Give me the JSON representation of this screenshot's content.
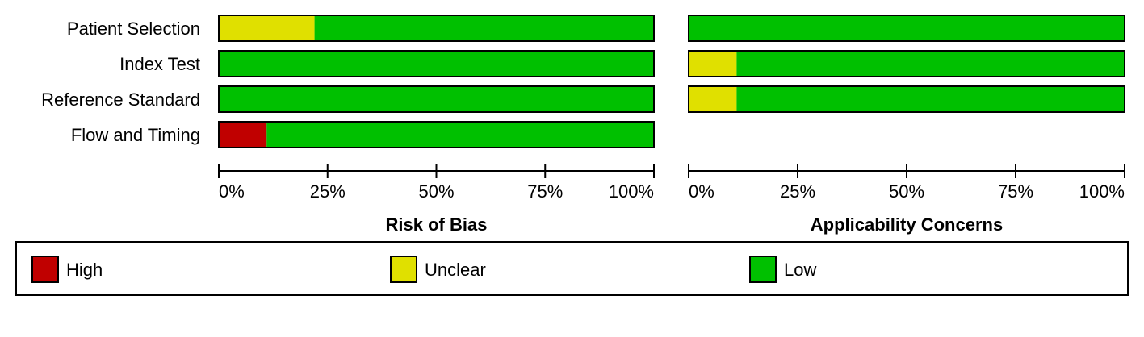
{
  "chart_data": [
    {
      "type": "bar",
      "orientation": "horizontal",
      "stacked": true,
      "title": "Risk of Bias",
      "categories": [
        "Patient Selection",
        "Index Test",
        "Reference Standard",
        "Flow and Timing"
      ],
      "series": [
        {
          "color": "#c00000",
          "values": [
            0,
            0,
            0,
            11
          ]
        },
        {
          "color": "#e0e000",
          "values": [
            22,
            0,
            0,
            0
          ]
        },
        {
          "color": "#00c000",
          "values": [
            78,
            100,
            100,
            89
          ]
        }
      ],
      "xlim": [
        0,
        100
      ],
      "xticks": [
        {
          "value": 0,
          "label": "0%"
        },
        {
          "value": 25,
          "label": "25%"
        },
        {
          "value": 50,
          "label": "50%"
        },
        {
          "value": 75,
          "label": "75%"
        },
        {
          "value": 100,
          "label": "100%"
        }
      ]
    },
    {
      "type": "bar",
      "orientation": "horizontal",
      "stacked": true,
      "title": "Applicability Concerns",
      "series": [
        {
          "color": "#c00000",
          "values": [
            0,
            0,
            0,
            null
          ]
        },
        {
          "color": "#e0e000",
          "values": [
            0,
            11,
            11,
            null
          ]
        },
        {
          "color": "#00c000",
          "values": [
            100,
            89,
            89,
            null
          ]
        }
      ],
      "xlim": [
        0,
        100
      ],
      "xticks": [
        {
          "value": 0,
          "label": "0%"
        },
        {
          "value": 25,
          "label": "25%"
        },
        {
          "value": 50,
          "label": "50%"
        },
        {
          "value": 75,
          "label": "75%"
        },
        {
          "value": 100,
          "label": "100%"
        }
      ]
    }
  ],
  "legend": [
    {
      "name": "High",
      "color": "#c00000"
    },
    {
      "name": "Unclear",
      "color": "#e0e000"
    },
    {
      "name": "Low",
      "color": "#00c000"
    }
  ]
}
